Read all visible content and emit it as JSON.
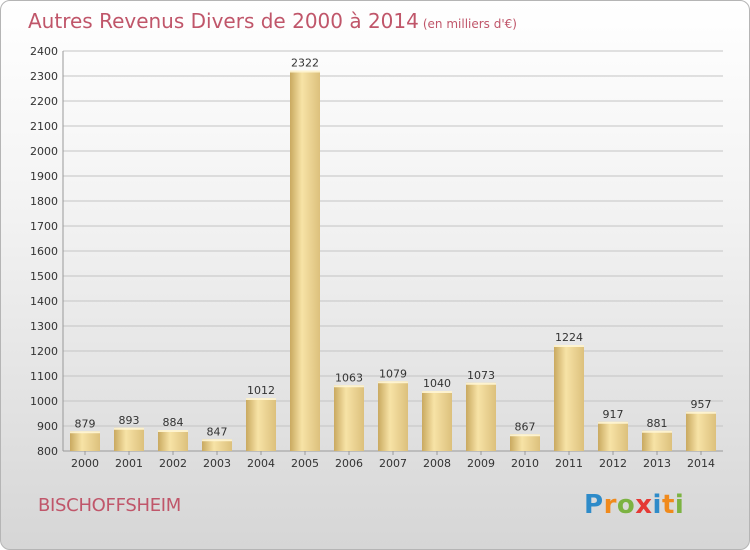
{
  "title": {
    "main": "Autres Revenus Divers de 2000 à 2014",
    "unit": "(en milliers d'€)"
  },
  "town": "BISCHOFFSHEIM",
  "logo": {
    "text": "Proxiti",
    "colors": [
      "#2e8bc9",
      "#f08a1c",
      "#7cb342",
      "#e53935",
      "#2e8bc9",
      "#f08a1c",
      "#7cb342"
    ]
  },
  "colors": {
    "title": "#c0566a",
    "bar_light": "#f7e3a6",
    "bar_dark": "#c9a960",
    "grid": "#bdbdbd"
  },
  "chart_data": {
    "type": "bar",
    "title": "Autres Revenus Divers de 2000 à 2014",
    "categories": [
      "2000",
      "2001",
      "2002",
      "2003",
      "2004",
      "2005",
      "2006",
      "2007",
      "2008",
      "2009",
      "2010",
      "2011",
      "2012",
      "2013",
      "2014"
    ],
    "values": [
      879,
      893,
      884,
      847,
      1012,
      2322,
      1063,
      1079,
      1040,
      1073,
      867,
      1224,
      917,
      881,
      957
    ],
    "ylim": [
      800,
      2400
    ],
    "yticks": [
      800,
      900,
      1000,
      1100,
      1200,
      1300,
      1400,
      1500,
      1600,
      1700,
      1800,
      1900,
      2000,
      2100,
      2200,
      2300,
      2400
    ],
    "grid": true,
    "data_labels": true
  }
}
